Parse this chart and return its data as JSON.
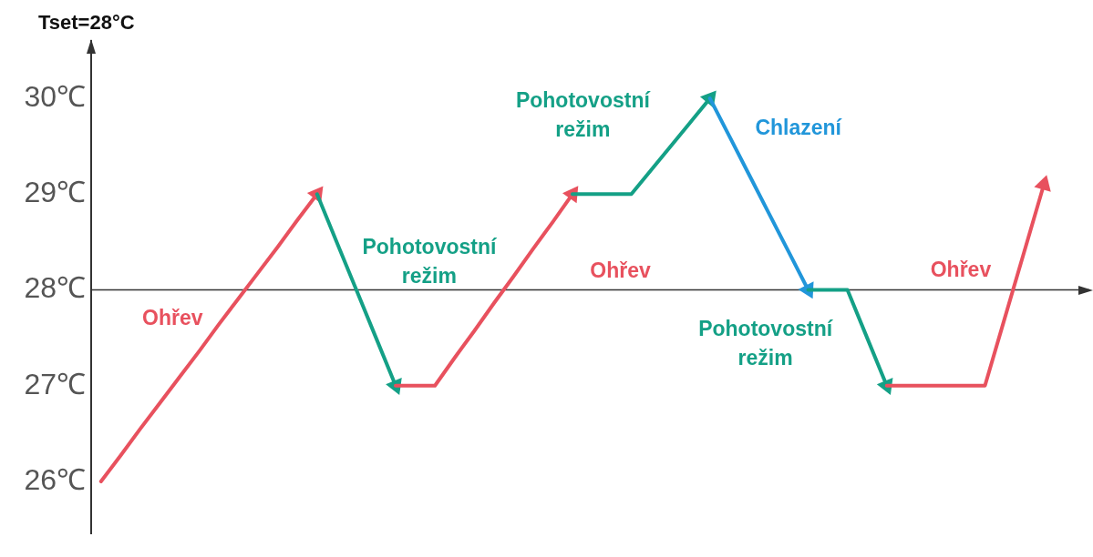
{
  "chart_data": {
    "type": "line",
    "title": "Tset=28°C",
    "categories": [
      null,
      null,
      null,
      null,
      null,
      null,
      null,
      null,
      null,
      null,
      null,
      null,
      null,
      null,
      null,
      null,
      null,
      null,
      null,
      null,
      null,
      null,
      null,
      null,
      null,
      null,
      null,
      null,
      null,
      null,
      null,
      null,
      null,
      null,
      null,
      null,
      null,
      null,
      null,
      null,
      null,
      null,
      null,
      null,
      null,
      null,
      null,
      null,
      null,
      null,
      null
    ],
    "ylim": [
      25.45,
      30.6
    ],
    "yticks": [
      {
        "value": 26,
        "label": "26℃"
      },
      {
        "value": 27,
        "label": "27℃"
      },
      {
        "value": 28,
        "label": "28℃"
      },
      {
        "value": 29,
        "label": "29℃"
      },
      {
        "value": 30,
        "label": "30℃"
      }
    ],
    "tick_labels": "y",
    "grid": false,
    "line_style": "solid",
    "marker": "none",
    "ref_lines": [
      {
        "axis": "y",
        "value": 28,
        "color": "#333333"
      }
    ],
    "annotations": [
      "Ohřev",
      "Pohotovostní režim",
      "Ohřev",
      "Pohotovostní režim",
      "Chlazení",
      "Pohotovostní režim",
      "Ohřev"
    ],
    "series": [
      {
        "color": "#e8515e",
        "values": [
          26,
          26.27,
          26.55,
          26.82,
          27.09,
          27.36,
          27.64,
          27.91,
          28.18,
          28.45,
          28.73,
          29,
          null,
          null,
          null,
          null,
          null,
          null,
          null,
          null,
          null,
          null,
          null,
          null,
          null,
          null,
          null,
          null,
          null,
          null,
          null,
          null,
          null,
          null,
          null,
          null,
          null,
          null,
          null,
          null,
          null,
          null,
          null,
          null,
          null,
          null,
          null,
          null,
          null,
          null,
          null
        ]
      },
      {
        "color": "#14a086",
        "values": [
          null,
          null,
          null,
          null,
          null,
          null,
          null,
          null,
          null,
          null,
          null,
          29,
          28.5,
          28,
          27.5,
          27,
          null,
          null,
          null,
          null,
          null,
          null,
          null,
          null,
          null,
          null,
          null,
          null,
          null,
          null,
          null,
          null,
          null,
          null,
          null,
          null,
          null,
          null,
          null,
          null,
          null,
          null,
          null,
          null,
          null,
          null,
          null,
          null,
          null,
          null,
          null
        ]
      },
      {
        "color": "#e8515e",
        "values": [
          null,
          null,
          null,
          null,
          null,
          null,
          null,
          null,
          null,
          null,
          null,
          null,
          null,
          null,
          null,
          27,
          27,
          27,
          27.29,
          27.57,
          27.86,
          28.14,
          28.43,
          28.71,
          29,
          null,
          null,
          null,
          null,
          null,
          null,
          null,
          null,
          null,
          null,
          null,
          null,
          null,
          null,
          null,
          null,
          null,
          null,
          null,
          null,
          null,
          null,
          null,
          null,
          null,
          null
        ]
      },
      {
        "color": "#14a086",
        "values": [
          null,
          null,
          null,
          null,
          null,
          null,
          null,
          null,
          null,
          null,
          null,
          null,
          null,
          null,
          null,
          null,
          null,
          null,
          null,
          null,
          null,
          null,
          null,
          null,
          29,
          29,
          29,
          29,
          29.25,
          29.5,
          29.75,
          30,
          null,
          null,
          null,
          null,
          null,
          null,
          null,
          null,
          null,
          null,
          null,
          null,
          null,
          null,
          null,
          null,
          null,
          null,
          null
        ]
      },
      {
        "color": "#2196da",
        "values": [
          null,
          null,
          null,
          null,
          null,
          null,
          null,
          null,
          null,
          null,
          null,
          null,
          null,
          null,
          null,
          null,
          null,
          null,
          null,
          null,
          null,
          null,
          null,
          null,
          null,
          null,
          null,
          null,
          null,
          null,
          null,
          30,
          29.6,
          29.2,
          28.8,
          28.4,
          28,
          null,
          null,
          null,
          null,
          null,
          null,
          null,
          null,
          null,
          null,
          null,
          null,
          null,
          null
        ]
      },
      {
        "color": "#14a086",
        "values": [
          null,
          null,
          null,
          null,
          null,
          null,
          null,
          null,
          null,
          null,
          null,
          null,
          null,
          null,
          null,
          null,
          null,
          null,
          null,
          null,
          null,
          null,
          null,
          null,
          null,
          null,
          null,
          null,
          null,
          null,
          null,
          null,
          null,
          null,
          null,
          null,
          28,
          28,
          28,
          27.5,
          27,
          null,
          null,
          null,
          null,
          null,
          null,
          null,
          null,
          null,
          null
        ]
      },
      {
        "color": "#e8515e",
        "values": [
          null,
          null,
          null,
          null,
          null,
          null,
          null,
          null,
          null,
          null,
          null,
          null,
          null,
          null,
          null,
          null,
          null,
          null,
          null,
          null,
          null,
          null,
          null,
          null,
          null,
          null,
          null,
          null,
          null,
          null,
          null,
          null,
          null,
          null,
          null,
          null,
          null,
          null,
          null,
          null,
          27,
          27,
          27,
          27,
          27,
          27,
          27.7,
          28.4,
          29.1,
          null,
          null
        ]
      }
    ]
  }
}
